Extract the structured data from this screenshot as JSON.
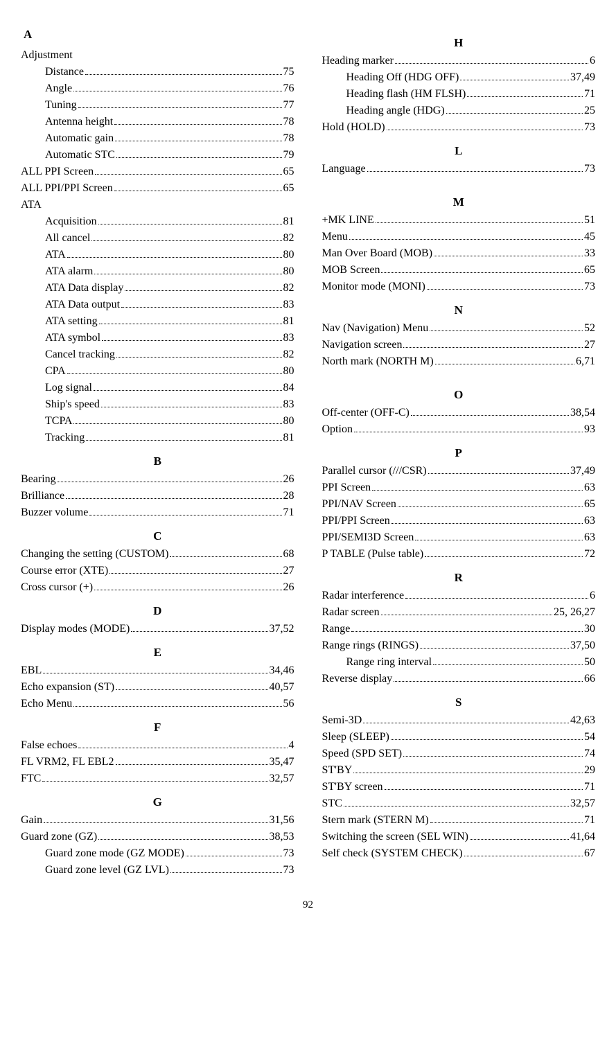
{
  "pageNumber": "92",
  "left": [
    {
      "type": "letter",
      "text": "A",
      "first": true
    },
    {
      "type": "group",
      "text": "Adjustment"
    },
    {
      "label": "Distance",
      "page": "75",
      "indent": 1
    },
    {
      "label": "Angle",
      "page": "76",
      "indent": 1
    },
    {
      "label": "Tuning",
      "page": "77",
      "indent": 1
    },
    {
      "label": "Antenna height",
      "page": "78",
      "indent": 1
    },
    {
      "label": "Automatic gain",
      "page": "78",
      "indent": 1
    },
    {
      "label": "Automatic STC",
      "page": "79",
      "indent": 1
    },
    {
      "label": "ALL PPI Screen",
      "page": "65",
      "indent": 0
    },
    {
      "label": "ALL PPI/PPI Screen",
      "page": "65",
      "indent": 0
    },
    {
      "type": "group",
      "text": "ATA"
    },
    {
      "label": "Acquisition",
      "page": "81",
      "indent": 1
    },
    {
      "label": "All cancel",
      "page": "82",
      "indent": 1
    },
    {
      "label": "ATA",
      "page": "80",
      "indent": 1
    },
    {
      "label": "ATA alarm",
      "page": "80",
      "indent": 1
    },
    {
      "label": "ATA Data display",
      "page": "82",
      "indent": 1
    },
    {
      "label": "ATA Data output",
      "page": "83",
      "indent": 1
    },
    {
      "label": "ATA setting",
      "page": "81",
      "indent": 1
    },
    {
      "label": "ATA symbol",
      "page": "83",
      "indent": 1
    },
    {
      "label": "Cancel tracking",
      "page": "82",
      "indent": 1
    },
    {
      "label": "CPA",
      "page": "80",
      "indent": 1
    },
    {
      "label": "Log signal",
      "page": "84",
      "indent": 1
    },
    {
      "label": "Ship's speed",
      "page": "83",
      "indent": 1
    },
    {
      "label": "TCPA",
      "page": "80",
      "indent": 1
    },
    {
      "label": "Tracking",
      "page": "81",
      "indent": 1
    },
    {
      "type": "letter",
      "text": "B"
    },
    {
      "label": "Bearing",
      "page": "26",
      "indent": 0
    },
    {
      "label": "Brilliance",
      "page": "28",
      "indent": 0
    },
    {
      "label": "Buzzer volume",
      "page": "71",
      "indent": 0
    },
    {
      "type": "letter",
      "text": "C"
    },
    {
      "label": "Changing the setting (CUSTOM)",
      "page": "68",
      "indent": 0
    },
    {
      "label": "Course error (XTE)",
      "page": "27",
      "indent": 0
    },
    {
      "label": "Cross cursor (+)",
      "page": "26",
      "indent": 0
    },
    {
      "type": "letter",
      "text": "D"
    },
    {
      "label": "Display modes (MODE)",
      "page": "37,52",
      "indent": 0
    },
    {
      "type": "letter",
      "text": "E"
    },
    {
      "label": "EBL",
      "page": "34,46",
      "indent": 0
    },
    {
      "label": "Echo expansion (ST)",
      "page": "40,57",
      "indent": 0
    },
    {
      "label": "Echo Menu",
      "page": "56",
      "indent": 0
    },
    {
      "type": "letter",
      "text": "F"
    },
    {
      "label": "False echoes",
      "page": "4",
      "indent": 0
    },
    {
      "label": "FL VRM2, FL EBL2",
      "page": "35,47",
      "indent": 0
    },
    {
      "label": "FTC",
      "page": "32,57",
      "indent": 0
    },
    {
      "type": "letter",
      "text": "G"
    },
    {
      "label": "Gain",
      "page": "31,56",
      "indent": 0
    },
    {
      "label": "Guard zone (GZ)",
      "page": "38,53",
      "indent": 0
    },
    {
      "label": "Guard zone mode (GZ MODE)",
      "page": "73",
      "indent": 1
    },
    {
      "label": "Guard zone level (GZ LVL)",
      "page": "73",
      "indent": 1
    }
  ],
  "right": [
    {
      "type": "letter",
      "text": "H"
    },
    {
      "label": "Heading marker",
      "page": "6",
      "indent": 0
    },
    {
      "label": "Heading Off (HDG OFF)",
      "page": "37,49",
      "indent": 1
    },
    {
      "label": "Heading flash (HM FLSH)",
      "page": "71",
      "indent": 1
    },
    {
      "label": "Heading angle (HDG)",
      "page": "25",
      "indent": 1
    },
    {
      "label": "Hold (HOLD)",
      "page": "73",
      "indent": 0
    },
    {
      "type": "letter",
      "text": "L"
    },
    {
      "label": "Language",
      "page": "73",
      "indent": 0
    },
    {
      "type": "spacer"
    },
    {
      "type": "letter",
      "text": "M"
    },
    {
      "label": "+MK LINE",
      "page": "51",
      "indent": 0
    },
    {
      "label": "Menu",
      "page": "45",
      "indent": 0
    },
    {
      "label": "Man Over Board (MOB)",
      "page": "33",
      "indent": 0
    },
    {
      "label": "MOB Screen",
      "page": "65",
      "indent": 0
    },
    {
      "label": "Monitor mode (MONI)",
      "page": "73",
      "indent": 0
    },
    {
      "type": "letter",
      "text": "N"
    },
    {
      "label": "Nav (Navigation) Menu",
      "page": "52",
      "indent": 0
    },
    {
      "label": "Navigation screen",
      "page": "27",
      "indent": 0
    },
    {
      "label": "North mark (NORTH M)",
      "page": "6,71",
      "indent": 0
    },
    {
      "type": "spacer"
    },
    {
      "type": "letter",
      "text": "O"
    },
    {
      "label": "Off-center (OFF-C)",
      "page": "38,54",
      "indent": 0
    },
    {
      "label": "Option",
      "page": "93",
      "indent": 0
    },
    {
      "type": "letter",
      "text": "P"
    },
    {
      "label": "Parallel cursor (///CSR)",
      "page": "37,49",
      "indent": 0
    },
    {
      "label": "PPI Screen",
      "page": "63",
      "indent": 0
    },
    {
      "label": "PPI/NAV Screen",
      "page": "65",
      "indent": 0
    },
    {
      "label": "PPI/PPI Screen",
      "page": "63",
      "indent": 0
    },
    {
      "label": "PPI/SEMI3D Screen",
      "page": "63",
      "indent": 0
    },
    {
      "label": "P TABLE (Pulse table)",
      "page": "72",
      "indent": 0
    },
    {
      "type": "letter",
      "text": "R"
    },
    {
      "label": "Radar interference",
      "page": "6",
      "indent": 0
    },
    {
      "label": "Radar screen",
      "page": "25, 26,27",
      "indent": 0
    },
    {
      "label": "Range",
      "page": "30",
      "indent": 0
    },
    {
      "label": "Range rings (RINGS)",
      "page": "37,50",
      "indent": 0
    },
    {
      "label": "Range ring interval",
      "page": "50",
      "indent": 1
    },
    {
      "label": "Reverse display",
      "page": "66",
      "indent": 0
    },
    {
      "type": "letter",
      "text": "S"
    },
    {
      "label": "Semi-3D",
      "page": "42,63",
      "indent": 0
    },
    {
      "label": "Sleep (SLEEP)",
      "page": "54",
      "indent": 0
    },
    {
      "label": "Speed (SPD SET)",
      "page": "74",
      "indent": 0
    },
    {
      "label": "ST'BY",
      "page": "29",
      "indent": 0
    },
    {
      "label": "ST'BY screen",
      "page": "71",
      "indent": 0
    },
    {
      "label": "STC",
      "page": "32,57",
      "indent": 0
    },
    {
      "label": "Stern mark (STERN M)",
      "page": "71",
      "indent": 0
    },
    {
      "label": "Switching the screen (SEL WIN)",
      "page": "41,64",
      "indent": 0
    },
    {
      "label": "Self check (SYSTEM CHECK)",
      "page": "67",
      "indent": 0
    }
  ]
}
